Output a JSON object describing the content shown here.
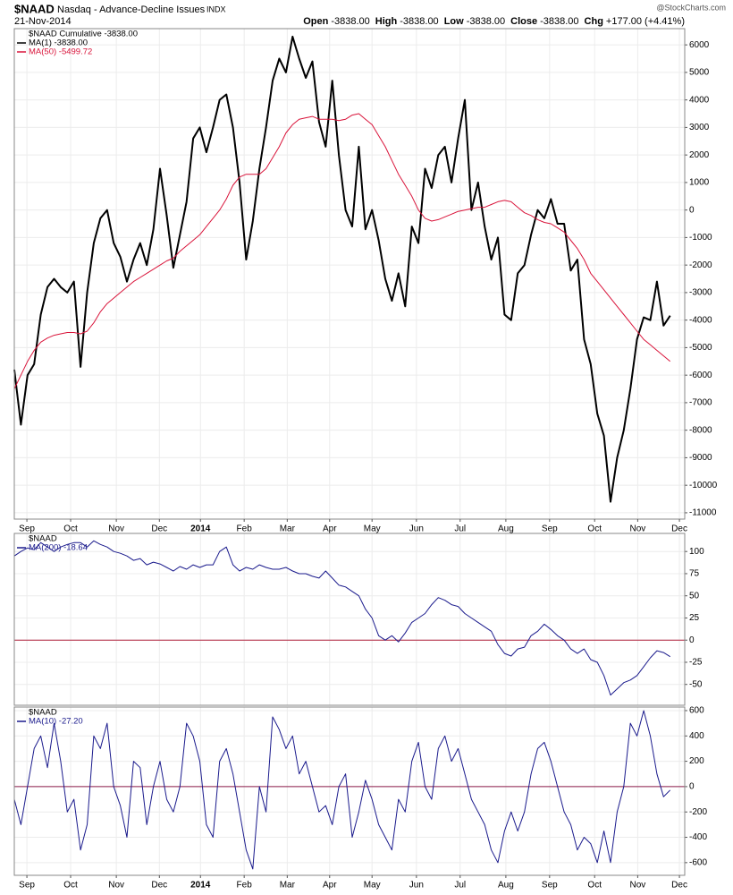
{
  "header": {
    "symbol": "$NAAD",
    "name": "Nasdaq - Advance-Decline Issues",
    "exchange": "INDX",
    "date": "21-Nov-2014",
    "quote": [
      {
        "label": "Open",
        "value": "-3838.00"
      },
      {
        "label": "High",
        "value": "-3838.00"
      },
      {
        "label": "Low",
        "value": "-3838.00"
      },
      {
        "label": "Close",
        "value": "-3838.00"
      },
      {
        "label": "Chg",
        "value": "+177.00 (+4.41%)"
      }
    ],
    "credit": "@StockCharts.com"
  },
  "chart_data": [
    {
      "type": "line",
      "legend_title": "$NAAD Cumulative -3838.00",
      "x": [
        0,
        1,
        2,
        3,
        4,
        5,
        6,
        7,
        8,
        9,
        10,
        11,
        12,
        13,
        14,
        15,
        16,
        17,
        18,
        19,
        20,
        21,
        22,
        23,
        24,
        25,
        26,
        27,
        28,
        29,
        30,
        31,
        32,
        33,
        34,
        35,
        36,
        37,
        38,
        39,
        40,
        41,
        42,
        43,
        44,
        45,
        46,
        47,
        48,
        49,
        50,
        51,
        52,
        53,
        54,
        55,
        56,
        57,
        58,
        59,
        60,
        61,
        62,
        63,
        64,
        65,
        66,
        67,
        68,
        69,
        70,
        71,
        72,
        73,
        74,
        75,
        76,
        77,
        78,
        79,
        80,
        81,
        82,
        83,
        84,
        85,
        86,
        87,
        88,
        89,
        90,
        91,
        92,
        93,
        94,
        95,
        96,
        97,
        98,
        99
      ],
      "series": [
        {
          "name": "MA(1) -3838.00",
          "color": "#000000",
          "width": 2,
          "values": [
            -5800,
            -7800,
            -6000,
            -5600,
            -3800,
            -2800,
            -2500,
            -2800,
            -3000,
            -2600,
            -5700,
            -3000,
            -1200,
            -300,
            0,
            -1200,
            -1700,
            -2600,
            -1800,
            -1200,
            -2000,
            -700,
            1500,
            -200,
            -2100,
            -900,
            300,
            2600,
            3000,
            2100,
            3000,
            4000,
            4200,
            3000,
            1000,
            -1800,
            -400,
            1500,
            3000,
            4700,
            5500,
            5000,
            6300,
            5500,
            4800,
            5400,
            3200,
            2300,
            4700,
            2000,
            0,
            -600,
            2300,
            -700,
            0,
            -1100,
            -2500,
            -3300,
            -2300,
            -3500,
            -600,
            -1200,
            1500,
            800,
            2000,
            2300,
            1000,
            2600,
            4000,
            0,
            1000,
            -600,
            -1800,
            -1000,
            -3800,
            -4000,
            -2300,
            -2000,
            -900,
            0,
            -300,
            400,
            -500,
            -500,
            -2200,
            -1800,
            -4700,
            -5600,
            -7400,
            -8200,
            -10600,
            -9000,
            -8000,
            -6500,
            -4700,
            -3900,
            -4000,
            -2600,
            -4200,
            -3838
          ]
        },
        {
          "name": "MA(50) -5499.72",
          "color": "#d9143a",
          "width": 1,
          "values": [
            -6500,
            -6000,
            -5500,
            -5100,
            -4800,
            -4650,
            -4550,
            -4500,
            -4450,
            -4450,
            -4500,
            -4400,
            -4100,
            -3700,
            -3400,
            -3200,
            -3000,
            -2800,
            -2600,
            -2450,
            -2300,
            -2150,
            -2000,
            -1850,
            -1750,
            -1500,
            -1300,
            -1100,
            -900,
            -600,
            -300,
            0,
            400,
            900,
            1200,
            1300,
            1300,
            1300,
            1500,
            1900,
            2300,
            2800,
            3100,
            3300,
            3350,
            3400,
            3300,
            3300,
            3300,
            3250,
            3300,
            3450,
            3500,
            3300,
            3100,
            2700,
            2300,
            1800,
            1300,
            900,
            500,
            0,
            -300,
            -400,
            -350,
            -250,
            -150,
            -50,
            0,
            50,
            100,
            100,
            200,
            300,
            350,
            300,
            100,
            -100,
            -200,
            -350,
            -450,
            -500,
            -650,
            -800,
            -1100,
            -1400,
            -1800,
            -2300,
            -2600,
            -2900,
            -3200,
            -3500,
            -3800,
            -4100,
            -4400,
            -4700,
            -4900,
            -5100,
            -5300,
            -5500
          ]
        }
      ],
      "xlim": [
        0,
        101.2
      ],
      "xticks": [
        {
          "value": 1.9,
          "label": "Sep"
        },
        {
          "value": 8.5,
          "label": "Oct"
        },
        {
          "value": 15.4,
          "label": "Nov"
        },
        {
          "value": 21.9,
          "label": "Dec"
        },
        {
          "value": 28.1,
          "label": "2014"
        },
        {
          "value": 34.7,
          "label": "Feb"
        },
        {
          "value": 41.2,
          "label": "Mar"
        },
        {
          "value": 47.6,
          "label": "Apr"
        },
        {
          "value": 54.0,
          "label": "May"
        },
        {
          "value": 60.7,
          "label": "Jun"
        },
        {
          "value": 67.3,
          "label": "Jul"
        },
        {
          "value": 74.2,
          "label": "Aug"
        },
        {
          "value": 80.8,
          "label": "Sep"
        },
        {
          "value": 87.6,
          "label": "Oct"
        },
        {
          "value": 94.1,
          "label": "Nov"
        },
        {
          "value": 100.4,
          "label": "Dec"
        }
      ],
      "ylim": [
        -11230,
        6590
      ],
      "yticks": [
        6000,
        5000,
        4000,
        3000,
        2000,
        1000,
        0,
        -1000,
        -2000,
        -3000,
        -4000,
        -5000,
        -6000,
        -7000,
        -8000,
        -9000,
        -10000,
        -11000
      ],
      "grid": true
    },
    {
      "type": "line",
      "legend_title": "$NAAD",
      "x": [
        0,
        1,
        2,
        3,
        4,
        5,
        6,
        7,
        8,
        9,
        10,
        11,
        12,
        13,
        14,
        15,
        16,
        17,
        18,
        19,
        20,
        21,
        22,
        23,
        24,
        25,
        26,
        27,
        28,
        29,
        30,
        31,
        32,
        33,
        34,
        35,
        36,
        37,
        38,
        39,
        40,
        41,
        42,
        43,
        44,
        45,
        46,
        47,
        48,
        49,
        50,
        51,
        52,
        53,
        54,
        55,
        56,
        57,
        58,
        59,
        60,
        61,
        62,
        63,
        64,
        65,
        66,
        67,
        68,
        69,
        70,
        71,
        72,
        73,
        74,
        75,
        76,
        77,
        78,
        79,
        80,
        81,
        82,
        83,
        84,
        85,
        86,
        87,
        88,
        89,
        90,
        91,
        92,
        93,
        94,
        95,
        96,
        97,
        98,
        99
      ],
      "series": [
        {
          "name": "MA(200) -18.64",
          "color": "#1a1a8c",
          "width": 1,
          "values": [
            95,
            100,
            104,
            102,
            110,
            105,
            100,
            105,
            108,
            110,
            110,
            105,
            112,
            108,
            105,
            100,
            98,
            95,
            90,
            92,
            85,
            88,
            86,
            82,
            78,
            83,
            80,
            85,
            82,
            85,
            85,
            100,
            105,
            85,
            78,
            82,
            80,
            85,
            82,
            80,
            80,
            82,
            78,
            75,
            75,
            72,
            70,
            78,
            70,
            62,
            60,
            55,
            50,
            35,
            25,
            5,
            0,
            5,
            -2,
            8,
            20,
            25,
            30,
            40,
            48,
            45,
            40,
            38,
            30,
            25,
            20,
            15,
            10,
            -5,
            -15,
            -18,
            -10,
            -8,
            5,
            10,
            18,
            12,
            5,
            0,
            -10,
            -15,
            -10,
            -22,
            -25,
            -40,
            -62,
            -55,
            -48,
            -45,
            -40,
            -30,
            -20,
            -12,
            -14,
            -18.64
          ]
        }
      ],
      "xlim": [
        0,
        101.2
      ],
      "ylim": [
        -73.5,
        120.4
      ],
      "yticks": [
        100,
        75,
        50,
        25,
        0,
        -25,
        -50
      ],
      "refline": 0,
      "refline_color": "#b0203a",
      "grid": true
    },
    {
      "type": "line",
      "legend_title": "$NAAD",
      "x": [
        0,
        1,
        2,
        3,
        4,
        5,
        6,
        7,
        8,
        9,
        10,
        11,
        12,
        13,
        14,
        15,
        16,
        17,
        18,
        19,
        20,
        21,
        22,
        23,
        24,
        25,
        26,
        27,
        28,
        29,
        30,
        31,
        32,
        33,
        34,
        35,
        36,
        37,
        38,
        39,
        40,
        41,
        42,
        43,
        44,
        45,
        46,
        47,
        48,
        49,
        50,
        51,
        52,
        53,
        54,
        55,
        56,
        57,
        58,
        59,
        60,
        61,
        62,
        63,
        64,
        65,
        66,
        67,
        68,
        69,
        70,
        71,
        72,
        73,
        74,
        75,
        76,
        77,
        78,
        79,
        80,
        81,
        82,
        83,
        84,
        85,
        86,
        87,
        88,
        89,
        90,
        91,
        92,
        93,
        94,
        95,
        96,
        97,
        98,
        99
      ],
      "series": [
        {
          "name": "MA(10) -27.20",
          "color": "#1a1a8c",
          "width": 1,
          "values": [
            -100,
            -300,
            0,
            300,
            400,
            150,
            500,
            200,
            -200,
            -100,
            -500,
            -300,
            400,
            300,
            500,
            0,
            -150,
            -400,
            200,
            150,
            -300,
            0,
            200,
            -100,
            -200,
            0,
            500,
            400,
            200,
            -300,
            -400,
            200,
            300,
            100,
            -200,
            -500,
            -650,
            0,
            -200,
            550,
            450,
            300,
            400,
            100,
            200,
            0,
            -200,
            -150,
            -300,
            0,
            100,
            -400,
            -200,
            50,
            -100,
            -300,
            -400,
            -500,
            -100,
            -200,
            200,
            350,
            0,
            -100,
            300,
            400,
            200,
            300,
            100,
            -100,
            -200,
            -300,
            -500,
            -600,
            -350,
            -200,
            -350,
            -200,
            100,
            300,
            350,
            200,
            0,
            -200,
            -300,
            -500,
            -400,
            -450,
            -600,
            -350,
            -600,
            -200,
            0,
            500,
            400,
            600,
            400,
            100,
            -80,
            -27.2
          ]
        }
      ],
      "xlim": [
        0,
        101.2
      ],
      "xticks": [
        {
          "value": 1.9,
          "label": "Sep"
        },
        {
          "value": 8.5,
          "label": "Oct"
        },
        {
          "value": 15.4,
          "label": "Nov"
        },
        {
          "value": 21.9,
          "label": "Dec"
        },
        {
          "value": 28.1,
          "label": "2014"
        },
        {
          "value": 34.7,
          "label": "Feb"
        },
        {
          "value": 41.2,
          "label": "Mar"
        },
        {
          "value": 47.6,
          "label": "Apr"
        },
        {
          "value": 54.0,
          "label": "May"
        },
        {
          "value": 60.7,
          "label": "Jun"
        },
        {
          "value": 67.3,
          "label": "Jul"
        },
        {
          "value": 74.2,
          "label": "Aug"
        },
        {
          "value": 80.8,
          "label": "Sep"
        },
        {
          "value": 87.6,
          "label": "Oct"
        },
        {
          "value": 94.1,
          "label": "Nov"
        },
        {
          "value": 100.4,
          "label": "Dec"
        }
      ],
      "ylim": [
        -700,
        628
      ],
      "yticks": [
        600,
        400,
        200,
        0,
        -200,
        -400,
        -600
      ],
      "refline": 0,
      "refline_color": "#8c1a4a",
      "grid": true
    }
  ]
}
